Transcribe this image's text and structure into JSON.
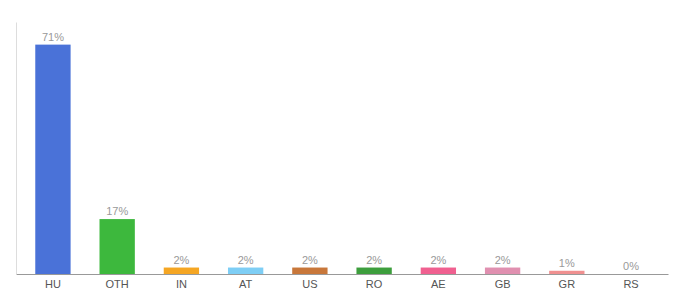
{
  "chart_data": {
    "type": "bar",
    "categories": [
      "HU",
      "OTH",
      "IN",
      "AT",
      "US",
      "RO",
      "AE",
      "GB",
      "GR",
      "RS"
    ],
    "values": [
      71,
      17,
      2,
      2,
      2,
      2,
      2,
      2,
      1,
      0
    ],
    "value_labels": [
      "71%",
      "17%",
      "2%",
      "2%",
      "2%",
      "2%",
      "2%",
      "2%",
      "1%",
      "0%"
    ],
    "colors": [
      "#4a72d8",
      "#3db83d",
      "#f5a623",
      "#7ecef5",
      "#c8773a",
      "#3d9e3d",
      "#f06090",
      "#e090b0",
      "#f09090",
      "#f0c0c0"
    ],
    "ylim": [
      0,
      78
    ],
    "data_labels": true,
    "tick_labels": "x"
  }
}
